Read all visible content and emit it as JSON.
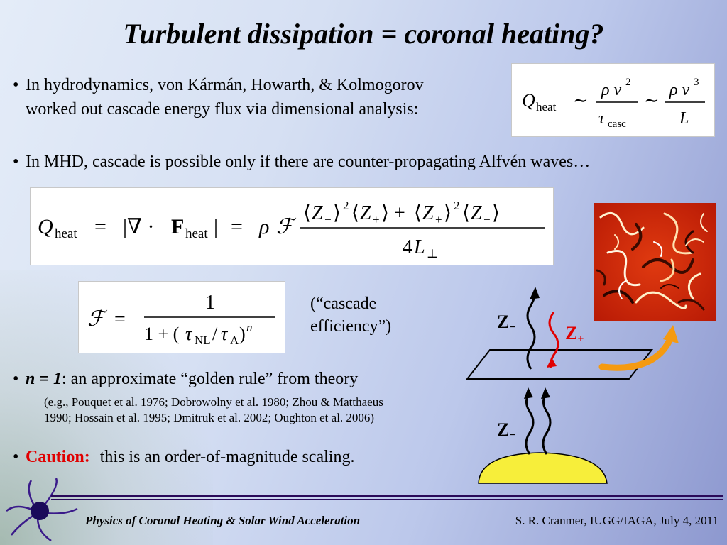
{
  "title": "Turbulent dissipation = coronal heating?",
  "bullets": {
    "b1_line1": "In hydrodynamics, von Kármán, Howarth, & Kolmogorov",
    "b1_line2": "worked out cascade energy flux via dimensional analysis:",
    "b2": "In MHD, cascade is possible only if there are counter-propagating Alfvén waves…",
    "b3_bold": "n = 1",
    "b3_rest": ": an approximate “golden rule” from theory",
    "b3_refs_line1": "(e.g., Pouquet et al. 1976; Dobrowolny et al. 1980; Zhou & Matthaeus",
    "b3_refs_line2": "1990; Hossain et al. 1995; Dmitruk et al. 2002; Oughton et al. 2006)",
    "b4_caution": "Caution:",
    "b4_rest": "this is an order-of-magnitude scaling."
  },
  "cascade_note": {
    "line1": "(“cascade",
    "line2": "efficiency”)"
  },
  "diagram": {
    "z_minus_top": "Z",
    "z_minus_bottom": "Z",
    "z_plus": "Z",
    "minus_sub": "−",
    "plus_sub": "+"
  },
  "footer": {
    "left": "Physics of Coronal Heating & Solar Wind Acceleration",
    "right": "S. R. Cranmer, IUGG/IAGA, July 4, 2011"
  },
  "colors": {
    "caution": "#e00000",
    "arrow_orange": "#f59a10",
    "sun_yellow": "#f7ee3a",
    "z_plus_red": "#e00000"
  }
}
